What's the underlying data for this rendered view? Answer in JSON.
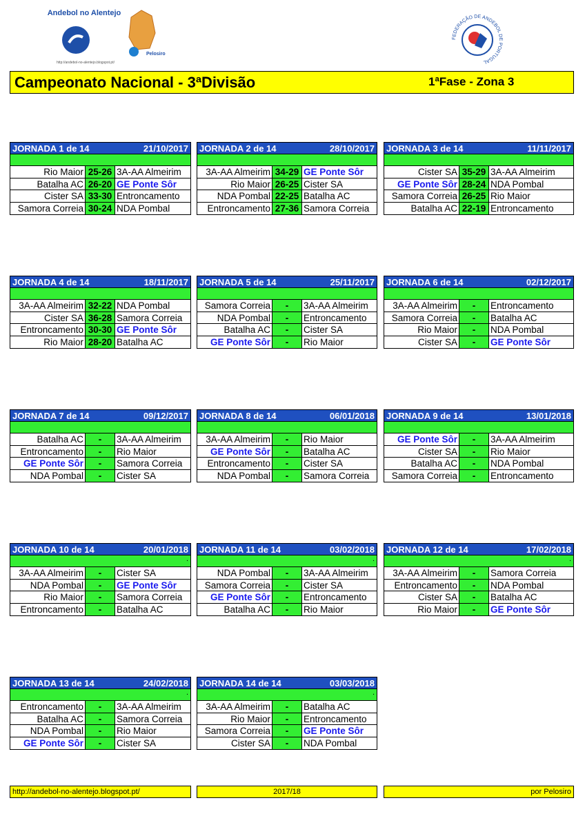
{
  "header": {
    "logo_left_title": "Andebol no Alentejo",
    "logo_left_url": "http://andebol-no-alentejo.blogspot.pt/",
    "logo_left_brand": "Pelosiro",
    "logo_right_text": "FEDERAÇÃO DE ANDEBOL DE PORTUGAL",
    "title": "Campeonato Nacional - 3ªDivisão",
    "phase": "1ªFase - Zona 3"
  },
  "highlight_team": "GE Ponte Sôr",
  "rounds": [
    {
      "title": "JORNADA 1 de 14",
      "date": "21/10/2017",
      "matches": [
        [
          "Rio Maior",
          "25-26",
          "3A-AA Almeirim"
        ],
        [
          "Batalha AC",
          "26-20",
          "GE Ponte Sôr"
        ],
        [
          "Cister SA",
          "33-30",
          "Entroncamento"
        ],
        [
          "Samora Correia",
          "30-24",
          "NDA Pombal"
        ]
      ]
    },
    {
      "title": "JORNADA 2 de 14",
      "date": "28/10/2017",
      "matches": [
        [
          "3A-AA Almeirim",
          "34-29",
          "GE Ponte Sôr"
        ],
        [
          "Rio Maior",
          "26-25",
          "Cister SA"
        ],
        [
          "NDA Pombal",
          "22-25",
          "Batalha AC"
        ],
        [
          "Entroncamento",
          "27-36",
          "Samora Correia"
        ]
      ]
    },
    {
      "title": "JORNADA 3 de 14",
      "date": "11/11/2017",
      "matches": [
        [
          "Cister SA",
          "35-29",
          "3A-AA Almeirim"
        ],
        [
          "GE Ponte Sôr",
          "28-24",
          "NDA Pombal"
        ],
        [
          "Samora Correia",
          "26-25",
          "Rio Maior"
        ],
        [
          "Batalha AC",
          "22-19",
          "Entroncamento"
        ]
      ]
    },
    {
      "title": "JORNADA 4 de 14",
      "date": "18/11/2017",
      "matches": [
        [
          "3A-AA Almeirim",
          "32-22",
          "NDA Pombal"
        ],
        [
          "Cister SA",
          "36-28",
          "Samora Correia"
        ],
        [
          "Entroncamento",
          "30-30",
          "GE Ponte Sôr"
        ],
        [
          "Rio Maior",
          "28-20",
          "Batalha AC"
        ]
      ]
    },
    {
      "title": "JORNADA 5 de 14",
      "date": "25/11/2017",
      "matches": [
        [
          "Samora Correia",
          "-",
          "3A-AA Almeirim"
        ],
        [
          "NDA Pombal",
          "-",
          "Entroncamento"
        ],
        [
          "Batalha AC",
          "-",
          "Cister SA"
        ],
        [
          "GE Ponte Sôr",
          "-",
          "Rio Maior"
        ]
      ]
    },
    {
      "title": "JORNADA 6 de 14",
      "date": "02/12/2017",
      "matches": [
        [
          "3A-AA Almeirim",
          "-",
          "Entroncamento"
        ],
        [
          "Samora Correia",
          "-",
          "Batalha AC"
        ],
        [
          "Rio Maior",
          "-",
          "NDA Pombal"
        ],
        [
          "Cister SA",
          "-",
          "GE Ponte Sôr"
        ]
      ]
    },
    {
      "title": "JORNADA 7 de 14",
      "date": "09/12/2017",
      "matches": [
        [
          "Batalha AC",
          "-",
          "3A-AA Almeirim"
        ],
        [
          "Entroncamento",
          "-",
          "Rio Maior"
        ],
        [
          "GE Ponte Sôr",
          "-",
          "Samora Correia"
        ],
        [
          "NDA Pombal",
          "-",
          "Cister SA"
        ]
      ]
    },
    {
      "title": "JORNADA 8 de 14",
      "date": "06/01/2018",
      "matches": [
        [
          "3A-AA Almeirim",
          "-",
          "Rio Maior"
        ],
        [
          "GE Ponte Sôr",
          "-",
          "Batalha AC"
        ],
        [
          "Entroncamento",
          "-",
          "Cister SA"
        ],
        [
          "NDA Pombal",
          "-",
          "Samora Correia"
        ]
      ]
    },
    {
      "title": "JORNADA 9 de 14",
      "date": "13/01/2018",
      "matches": [
        [
          "GE Ponte Sôr",
          "-",
          "3A-AA Almeirim"
        ],
        [
          "Cister SA",
          "-",
          "Rio Maior"
        ],
        [
          "Batalha AC",
          "-",
          "NDA Pombal"
        ],
        [
          "Samora Correia",
          "-",
          "Entroncamento"
        ]
      ]
    },
    {
      "title": "JORNADA 10 de 14",
      "date": "20/01/2018",
      "note": ".",
      "matches": [
        [
          "3A-AA Almeirim",
          "-",
          "Cister SA"
        ],
        [
          "NDA Pombal",
          "-",
          "GE Ponte Sôr"
        ],
        [
          "Rio Maior",
          "-",
          "Samora Correia"
        ],
        [
          "Entroncamento",
          "-",
          "Batalha AC"
        ]
      ]
    },
    {
      "title": "JORNADA 11 de 14",
      "date": "03/02/2018",
      "note": ".",
      "matches": [
        [
          "NDA Pombal",
          "-",
          "3A-AA Almeirim"
        ],
        [
          "Samora Correia",
          "-",
          "Cister SA"
        ],
        [
          "GE Ponte Sôr",
          "-",
          "Entroncamento"
        ],
        [
          "Batalha AC",
          "-",
          "Rio Maior"
        ]
      ]
    },
    {
      "title": "JORNADA 12 de 14",
      "date": "17/02/2018",
      "note": ".",
      "matches": [
        [
          "3A-AA Almeirim",
          "-",
          "Samora Correia"
        ],
        [
          "Entroncamento",
          "-",
          "NDA Pombal"
        ],
        [
          "Cister SA",
          "-",
          "Batalha AC"
        ],
        [
          "Rio Maior",
          "-",
          "GE Ponte Sôr"
        ]
      ]
    },
    {
      "title": "JORNADA 13 de 14",
      "date": "24/02/2018",
      "note": ".",
      "matches": [
        [
          "Entroncamento",
          "-",
          "3A-AA Almeirim"
        ],
        [
          "Batalha AC",
          "-",
          "Samora Correia"
        ],
        [
          "NDA Pombal",
          "-",
          "Rio Maior"
        ],
        [
          "GE Ponte Sôr",
          "-",
          "Cister SA"
        ]
      ]
    },
    {
      "title": "JORNADA 14 de 14",
      "date": "03/03/2018",
      "note": ".",
      "matches": [
        [
          "3A-AA Almeirim",
          "-",
          "Batalha AC"
        ],
        [
          "Rio Maior",
          "-",
          "Entroncamento"
        ],
        [
          "Samora Correia",
          "-",
          "GE Ponte Sôr"
        ],
        [
          "Cister SA",
          "-",
          "NDA Pombal"
        ]
      ]
    }
  ],
  "footer": {
    "url": "http://andebol-no-alentejo.blogspot.pt/",
    "season": "2017/18",
    "credit": "por Pelosiro"
  }
}
